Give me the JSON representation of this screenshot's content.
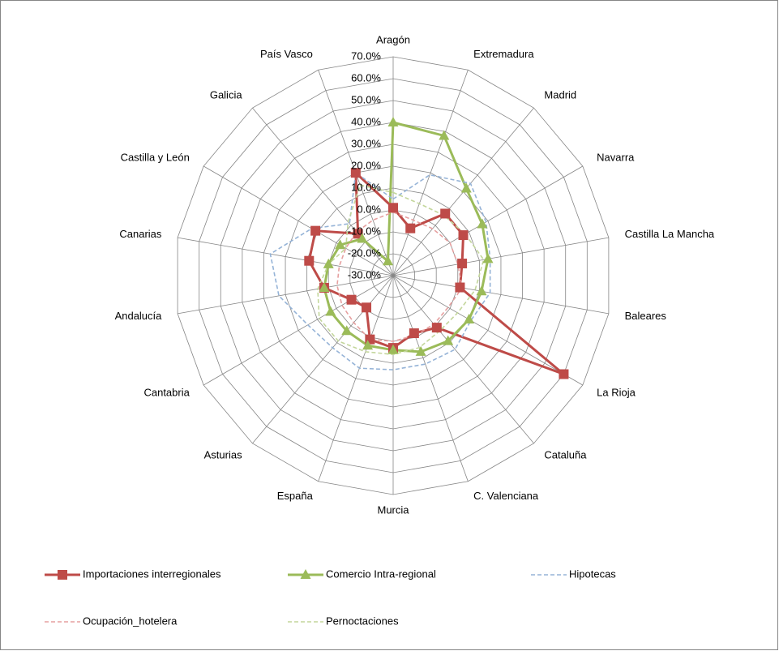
{
  "chart_data": {
    "type": "radar",
    "categories": [
      "Aragón",
      "Extremadura",
      "Madrid",
      "Navarra",
      "Castilla La Mancha",
      "Baleares",
      "La Rioja",
      "Cataluña",
      "C. Valenciana",
      "Murcia",
      "España",
      "Asturias",
      "Cantabria",
      "Andalucía",
      "Canarias",
      "Castilla y León",
      "Galicia",
      "País Vasco"
    ],
    "ylim": [
      -30,
      70
    ],
    "yticks": [
      {
        "value": -30,
        "label": "-30.0%"
      },
      {
        "value": -20,
        "label": "-20.0%"
      },
      {
        "value": -10,
        "label": "-10.0%"
      },
      {
        "value": 0,
        "label": "0.0%"
      },
      {
        "value": 10,
        "label": "10.0%"
      },
      {
        "value": 20,
        "label": "20.0%"
      },
      {
        "value": 30,
        "label": "30.0%"
      },
      {
        "value": 40,
        "label": "40.0%"
      },
      {
        "value": 50,
        "label": "50.0%"
      },
      {
        "value": 60,
        "label": "60.0%"
      },
      {
        "value": 70,
        "label": "70.0%"
      }
    ],
    "grid": true,
    "legend": "bottom",
    "series": [
      {
        "name": "Importaciones interregionales",
        "color": "#be4b48",
        "marker": "square",
        "dashed": false,
        "values": [
          1,
          -7,
          7,
          7,
          2,
          1,
          60,
          1,
          -2,
          3,
          1,
          -11,
          -8,
          2,
          9,
          11,
          -5,
          20
        ]
      },
      {
        "name": "Comercio Intra-regional",
        "color": "#9bbb59",
        "marker": "triangle",
        "dashed": false,
        "values": [
          40,
          38,
          22,
          17,
          14,
          11,
          10,
          9,
          7,
          4,
          4,
          3,
          3,
          2,
          0,
          -2,
          -8,
          -23
        ]
      },
      {
        "name": "Hipotecas",
        "color": "#95b3d7",
        "marker": null,
        "dashed": true,
        "values": [
          5,
          19,
          25,
          19,
          15,
          15,
          11,
          14,
          13,
          13,
          15,
          13,
          15,
          23,
          27,
          13,
          1,
          20
        ]
      },
      {
        "name": "Ocupación_hotelera",
        "color": "#e6a0a0",
        "marker": null,
        "dashed": true,
        "values": [
          -1,
          -3,
          -2,
          0,
          0,
          2,
          -1,
          -1,
          -1,
          0,
          1,
          -2,
          -3,
          -4,
          -5,
          -5,
          -4,
          -3
        ]
      },
      {
        "name": "Pernoctaciones",
        "color": "#c3d69b",
        "marker": null,
        "dashed": true,
        "values": [
          8,
          5,
          6,
          8,
          12,
          8,
          4,
          3,
          5,
          6,
          7,
          9,
          9,
          5,
          0,
          -5,
          2,
          14
        ]
      }
    ]
  }
}
